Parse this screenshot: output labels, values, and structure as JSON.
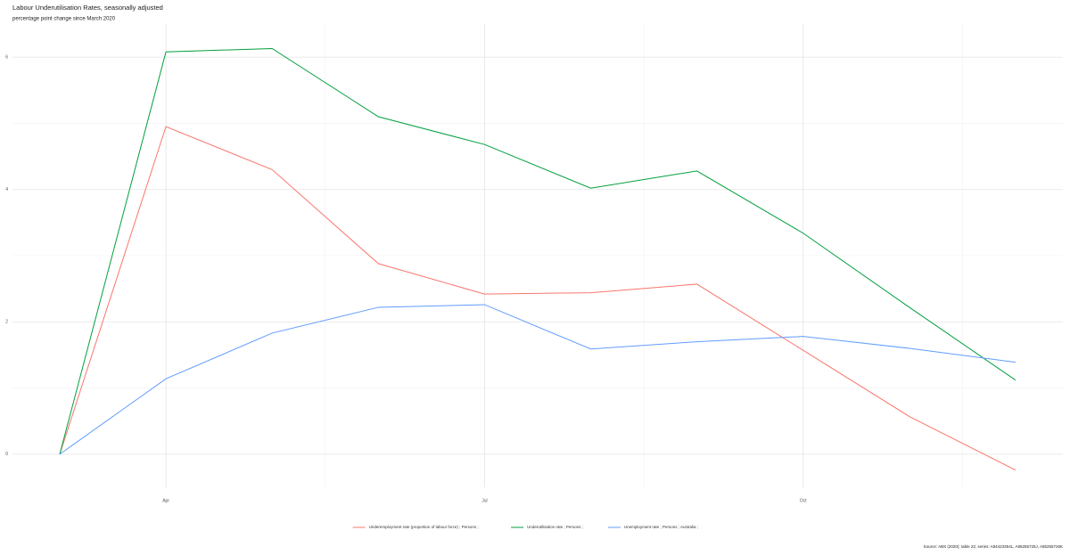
{
  "chart_data": {
    "type": "line",
    "title": "Labour Underutilisation Rates, seasonally adjusted",
    "subtitle": "percentage point change since March 2020",
    "caption": "Source: ABS (2020); table 22; series: A84423354L, A85255725J, A85255726K",
    "categories": [
      null,
      "Apr",
      null,
      null,
      "Jul",
      null,
      null,
      "Oct",
      null,
      null
    ],
    "series": [
      {
        "name": "Underemployment rate (proportion of labour force) ; Persons ;",
        "color": "#f8766d",
        "values": [
          0,
          4.95,
          4.3,
          2.88,
          2.42,
          2.44,
          2.57,
          1.57,
          0.57,
          -0.24
        ]
      },
      {
        "name": "Underutilisation rate ; Persons ;",
        "color": "#00a03c",
        "values": [
          0,
          6.08,
          6.13,
          5.1,
          4.68,
          4.02,
          4.28,
          3.34,
          2.22,
          1.12
        ]
      },
      {
        "name": "Unemployment rate ; Persons ; Australia ;",
        "color": "#619cff",
        "values": [
          0,
          1.14,
          1.83,
          2.22,
          2.26,
          1.59,
          1.7,
          1.78,
          1.6,
          1.39
        ]
      }
    ],
    "ylim": [
      -0.5,
      6.5
    ],
    "yticks": [
      0,
      2,
      4,
      6
    ],
    "grid": true,
    "legend": "bottom"
  }
}
